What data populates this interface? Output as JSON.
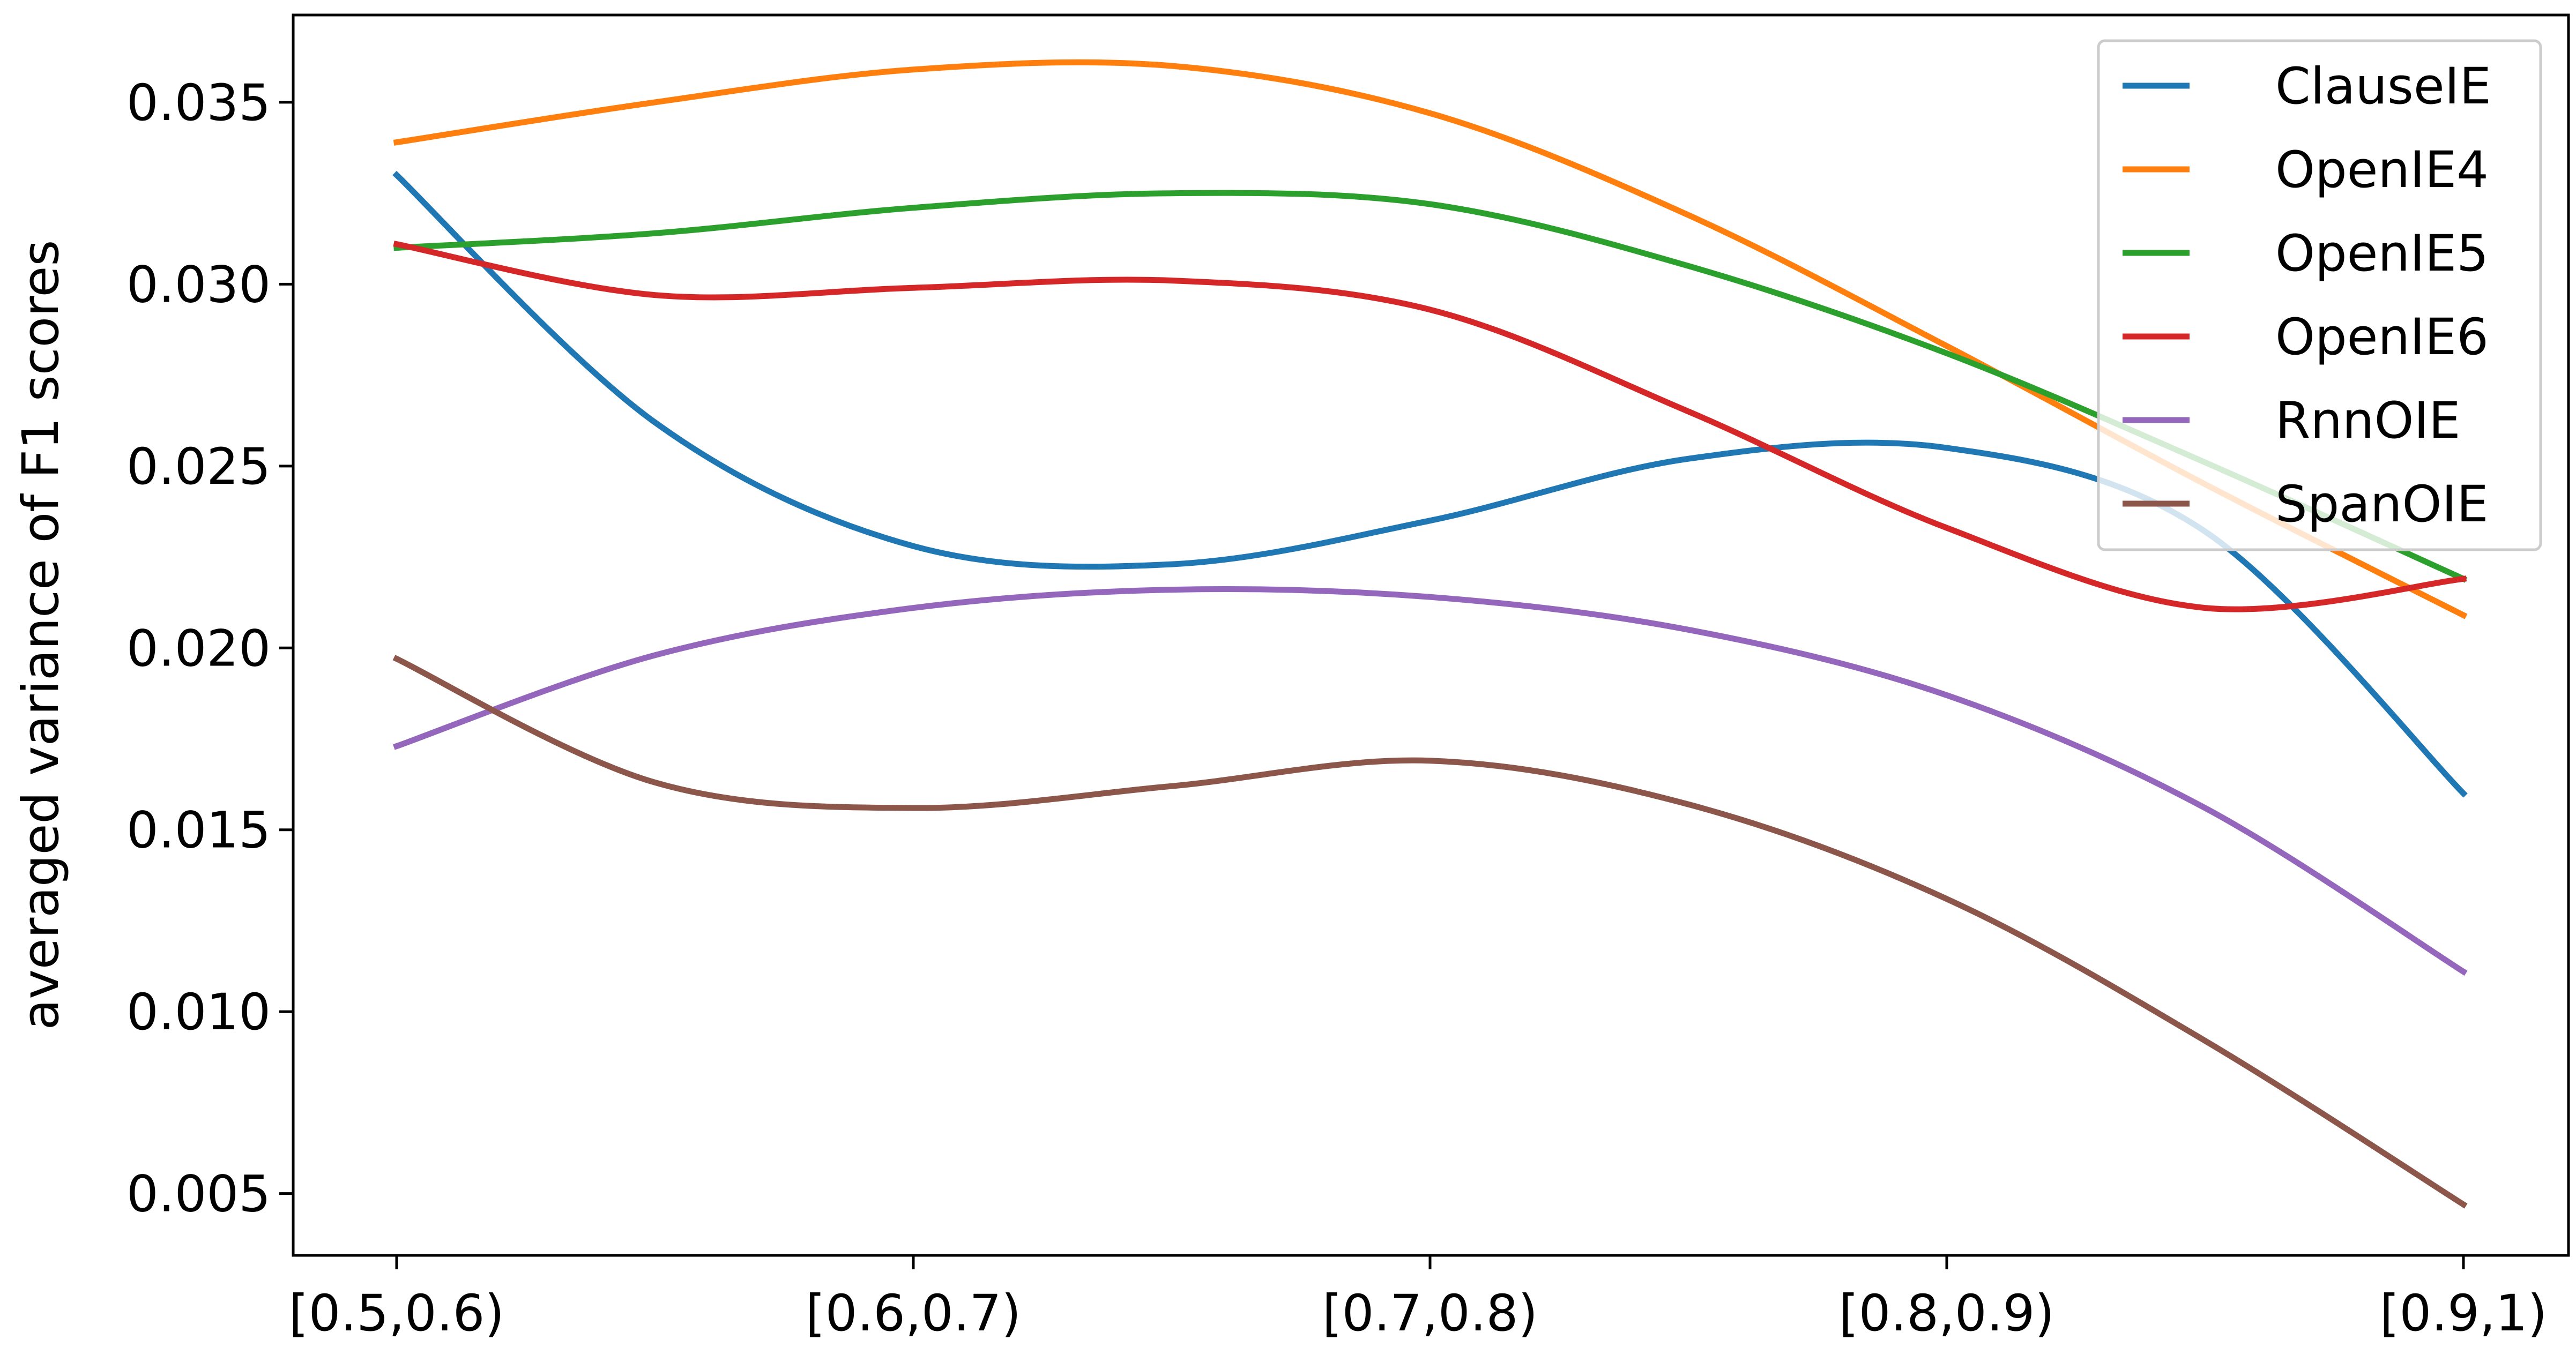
{
  "chart_data": {
    "type": "line",
    "title": "",
    "xlabel": "",
    "ylabel": "averaged variance of F1 scores",
    "categories": [
      "[0.5,0.6)",
      "[0.6,0.7)",
      "[0.7,0.8)",
      "[0.8,0.9)",
      "[0.9,1)"
    ],
    "ylim": [
      0.0033,
      0.0374
    ],
    "yticks": [
      "0.005",
      "0.010",
      "0.015",
      "0.020",
      "0.025",
      "0.030",
      "0.035"
    ],
    "grid": false,
    "legend_position": "top-right",
    "series": [
      {
        "name": "ClauseIE",
        "color": "#1f77b4",
        "x": [
          0,
          0.5,
          1,
          1.5,
          2,
          2.5,
          3,
          3.5,
          4
        ],
        "values": [
          0.033,
          0.0262,
          0.0228,
          0.0223,
          0.0235,
          0.0252,
          0.0255,
          0.0232,
          0.016
        ]
      },
      {
        "name": "OpenIE4",
        "color": "#ff7f0e",
        "x": [
          0,
          0.5,
          1,
          1.5,
          2,
          2.5,
          3,
          3.5,
          4
        ],
        "values": [
          0.0339,
          0.035,
          0.0359,
          0.036,
          0.0347,
          0.0319,
          0.0283,
          0.0245,
          0.0209
        ]
      },
      {
        "name": "OpenIE5",
        "color": "#2ca02c",
        "x": [
          0,
          0.5,
          1,
          1.5,
          2,
          2.5,
          3,
          3.5,
          4
        ],
        "values": [
          0.031,
          0.0314,
          0.0321,
          0.0325,
          0.0322,
          0.0305,
          0.0281,
          0.0251,
          0.0219
        ]
      },
      {
        "name": "OpenIE6",
        "color": "#d62728",
        "x": [
          0,
          0.5,
          1,
          1.5,
          2,
          2.5,
          3,
          3.5,
          4
        ],
        "values": [
          0.0311,
          0.0297,
          0.0299,
          0.0301,
          0.0293,
          0.0265,
          0.0233,
          0.0211,
          0.0219
        ]
      },
      {
        "name": "RnnOIE",
        "color": "#9467bd",
        "x": [
          0,
          0.5,
          1,
          1.5,
          2,
          2.5,
          3,
          3.5,
          4
        ],
        "values": [
          0.0173,
          0.0198,
          0.0211,
          0.0216,
          0.0214,
          0.0205,
          0.0187,
          0.0156,
          0.0111
        ]
      },
      {
        "name": "SpanOIE",
        "color": "#8c564b",
        "x": [
          0,
          0.5,
          1,
          1.5,
          2,
          2.5,
          3,
          3.5,
          4
        ],
        "values": [
          0.0197,
          0.0163,
          0.0156,
          0.0162,
          0.0169,
          0.0157,
          0.0131,
          0.0092,
          0.0047
        ]
      }
    ]
  }
}
